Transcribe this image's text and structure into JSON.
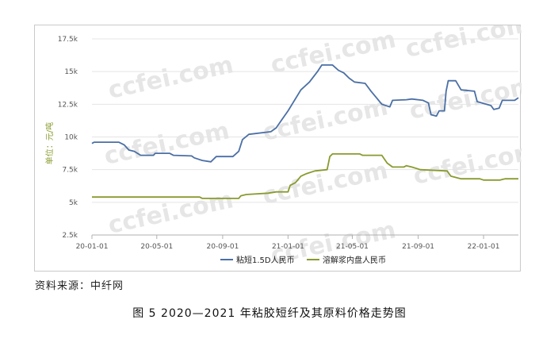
{
  "chart_data": {
    "type": "line",
    "title": "",
    "xlabel": "",
    "ylabel": "单位：元/吨",
    "ylim": [
      2500,
      17500
    ],
    "y_ticks": [
      2500,
      5000,
      7500,
      10000,
      12500,
      15000,
      17500
    ],
    "y_tick_labels": [
      "2.5k",
      "5k",
      "7.5k",
      "10k",
      "12.5k",
      "15k",
      "17.5k"
    ],
    "x_range": [
      "2020-01-01",
      "2022-03-07"
    ],
    "x_ticks": [
      "2020-01-01",
      "2020-05-01",
      "2020-09-01",
      "2021-01-01",
      "2021-05-01",
      "2021-09-01",
      "2022-01-01"
    ],
    "x_tick_labels": [
      "20-01-01",
      "20-05-01",
      "20-09-01",
      "21-01-01",
      "21-05-01",
      "21-09-01",
      "22-01-01"
    ],
    "grid": "horizontal",
    "legend": "bottom",
    "series": [
      {
        "name": "粘短1.5D人民币",
        "color": "#4a6fa5",
        "points": [
          [
            "2020-01-01",
            9500
          ],
          [
            "2020-01-05",
            9600
          ],
          [
            "2020-02-20",
            9600
          ],
          [
            "2020-03-01",
            9400
          ],
          [
            "2020-03-10",
            9000
          ],
          [
            "2020-03-20",
            8900
          ],
          [
            "2020-04-01",
            8600
          ],
          [
            "2020-04-25",
            8600
          ],
          [
            "2020-04-28",
            8750
          ],
          [
            "2020-05-25",
            8750
          ],
          [
            "2020-06-01",
            8600
          ],
          [
            "2020-07-05",
            8550
          ],
          [
            "2020-07-10",
            8400
          ],
          [
            "2020-07-25",
            8200
          ],
          [
            "2020-08-10",
            8100
          ],
          [
            "2020-08-15",
            8300
          ],
          [
            "2020-08-20",
            8500
          ],
          [
            "2020-09-20",
            8500
          ],
          [
            "2020-10-01",
            8900
          ],
          [
            "2020-10-08",
            9800
          ],
          [
            "2020-10-20",
            10200
          ],
          [
            "2020-11-30",
            10400
          ],
          [
            "2020-12-10",
            10700
          ],
          [
            "2020-12-20",
            11300
          ],
          [
            "2021-01-01",
            12000
          ],
          [
            "2021-01-10",
            12600
          ],
          [
            "2021-01-25",
            13600
          ],
          [
            "2021-02-10",
            14200
          ],
          [
            "2021-02-25",
            15000
          ],
          [
            "2021-03-05",
            15500
          ],
          [
            "2021-03-25",
            15500
          ],
          [
            "2021-04-05",
            15100
          ],
          [
            "2021-04-15",
            14900
          ],
          [
            "2021-04-25",
            14500
          ],
          [
            "2021-05-05",
            14200
          ],
          [
            "2021-05-25",
            14100
          ],
          [
            "2021-06-05",
            13500
          ],
          [
            "2021-06-15",
            13000
          ],
          [
            "2021-06-25",
            12500
          ],
          [
            "2021-07-10",
            12300
          ],
          [
            "2021-07-15",
            12800
          ],
          [
            "2021-08-10",
            12850
          ],
          [
            "2021-08-20",
            12900
          ],
          [
            "2021-09-10",
            12800
          ],
          [
            "2021-09-20",
            12600
          ],
          [
            "2021-09-25",
            11700
          ],
          [
            "2021-10-05",
            11600
          ],
          [
            "2021-10-10",
            12000
          ],
          [
            "2021-10-20",
            12000
          ],
          [
            "2021-10-23",
            13500
          ],
          [
            "2021-10-27",
            14300
          ],
          [
            "2021-11-10",
            14300
          ],
          [
            "2021-11-20",
            13600
          ],
          [
            "2021-12-15",
            13500
          ],
          [
            "2021-12-20",
            12700
          ],
          [
            "2022-01-15",
            12400
          ],
          [
            "2022-01-20",
            12100
          ],
          [
            "2022-01-30",
            12200
          ],
          [
            "2022-02-05",
            12800
          ],
          [
            "2022-02-28",
            12800
          ],
          [
            "2022-03-07",
            13000
          ]
        ]
      },
      {
        "name": "溶解浆内盘人民币",
        "color": "#8a9a2e",
        "points": [
          [
            "2020-01-01",
            5400
          ],
          [
            "2020-07-20",
            5400
          ],
          [
            "2020-07-25",
            5300
          ],
          [
            "2020-10-01",
            5300
          ],
          [
            "2020-10-05",
            5500
          ],
          [
            "2020-10-15",
            5600
          ],
          [
            "2020-11-25",
            5700
          ],
          [
            "2020-12-10",
            5800
          ],
          [
            "2021-01-01",
            5800
          ],
          [
            "2021-01-05",
            6300
          ],
          [
            "2021-01-15",
            6500
          ],
          [
            "2021-01-25",
            7000
          ],
          [
            "2021-02-05",
            7200
          ],
          [
            "2021-02-20",
            7400
          ],
          [
            "2021-03-15",
            7500
          ],
          [
            "2021-03-20",
            8500
          ],
          [
            "2021-03-25",
            8700
          ],
          [
            "2021-05-15",
            8700
          ],
          [
            "2021-05-20",
            8600
          ],
          [
            "2021-06-25",
            8600
          ],
          [
            "2021-07-05",
            8000
          ],
          [
            "2021-07-15",
            7700
          ],
          [
            "2021-08-05",
            7700
          ],
          [
            "2021-08-10",
            7800
          ],
          [
            "2021-08-20",
            7700
          ],
          [
            "2021-09-05",
            7500
          ],
          [
            "2021-10-25",
            7400
          ],
          [
            "2021-11-01",
            7000
          ],
          [
            "2021-11-20",
            6800
          ],
          [
            "2021-12-25",
            6800
          ],
          [
            "2022-01-01",
            6700
          ],
          [
            "2022-02-01",
            6700
          ],
          [
            "2022-02-10",
            6800
          ],
          [
            "2022-03-07",
            6800
          ]
        ]
      }
    ]
  },
  "watermark_text": "ccfei.com",
  "source_note": "资料来源：中纤网",
  "figure_caption": "图 5  2020—2021 年粘胶短纤及其原料价格走势图"
}
